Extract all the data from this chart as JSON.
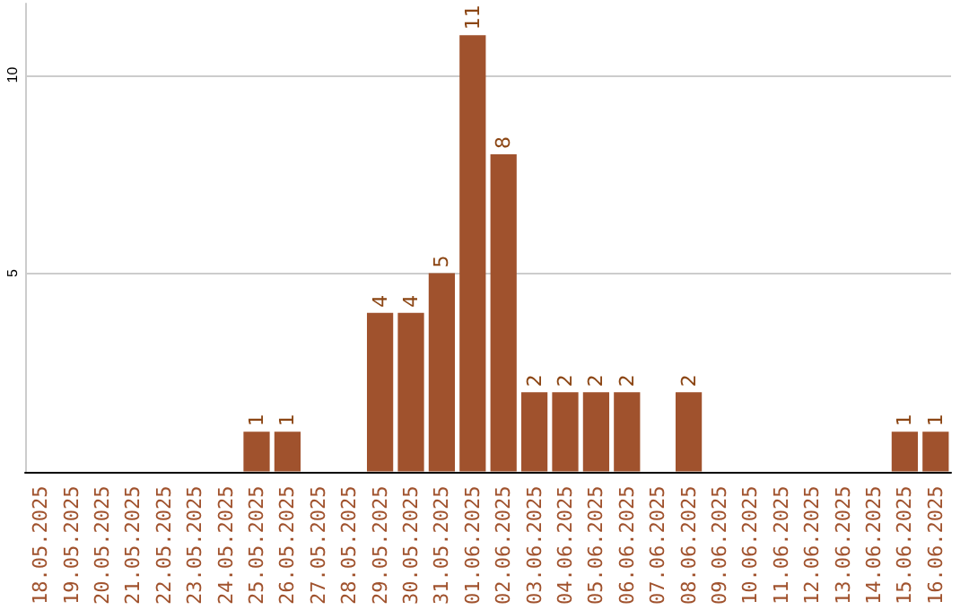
{
  "chart_data": {
    "type": "bar",
    "categories": [
      "18.05.2025",
      "19.05.2025",
      "20.05.2025",
      "21.05.2025",
      "22.05.2025",
      "23.05.2025",
      "24.05.2025",
      "25.05.2025",
      "26.05.2025",
      "27.05.2025",
      "28.05.2025",
      "29.05.2025",
      "30.05.2025",
      "31.05.2025",
      "01.06.2025",
      "02.06.2025",
      "03.06.2025",
      "04.06.2025",
      "05.06.2025",
      "06.06.2025",
      "07.06.2025",
      "08.06.2025",
      "09.06.2025",
      "10.06.2025",
      "11.06.2025",
      "12.06.2025",
      "13.06.2025",
      "14.06.2025",
      "15.06.2025",
      "16.06.2025"
    ],
    "values": [
      0,
      0,
      0,
      0,
      0,
      0,
      0,
      1,
      1,
      0,
      0,
      4,
      4,
      5,
      11,
      8,
      2,
      2,
      2,
      2,
      0,
      2,
      0,
      0,
      0,
      0,
      0,
      0,
      1,
      1
    ],
    "value_labels": [
      null,
      null,
      null,
      null,
      null,
      null,
      null,
      "1",
      "1",
      null,
      null,
      "4",
      "4",
      "5",
      "11",
      "8",
      "2",
      "2",
      "2",
      "2",
      null,
      "2",
      null,
      null,
      null,
      null,
      null,
      null,
      "1",
      "1"
    ],
    "color": "#a0522d",
    "ylim": [
      0,
      11.8
    ],
    "yticks": [
      5,
      10
    ],
    "grid": "y"
  }
}
